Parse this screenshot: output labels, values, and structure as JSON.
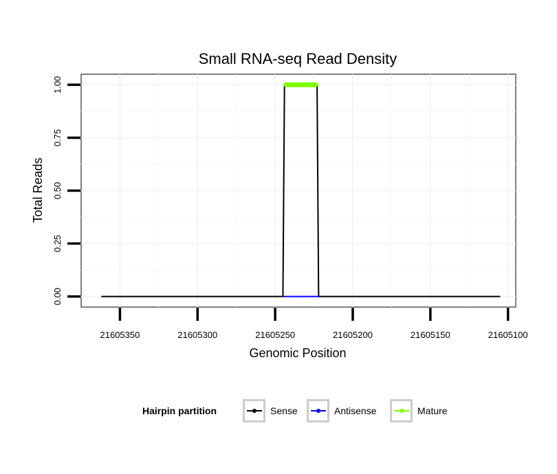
{
  "chart_data": {
    "type": "line",
    "title": "Small RNA-seq Read Density",
    "xlabel": "Genomic Position",
    "ylabel": "Total Reads",
    "x_reversed": true,
    "xlim": [
      21605375,
      21605095
    ],
    "ylim": [
      -0.05,
      1.05
    ],
    "x_ticks": [
      21605350,
      21605300,
      21605250,
      21605200,
      21605150,
      21605100
    ],
    "x_tick_labels": [
      "21605350",
      "21605300",
      "21605250",
      "21605200",
      "21605150",
      "21605100"
    ],
    "y_ticks": [
      0.0,
      0.25,
      0.5,
      0.75,
      1.0
    ],
    "y_tick_labels": [
      "0.00",
      "0.25",
      "0.50",
      "0.75",
      "1.00"
    ],
    "grid": true,
    "legend_position": "bottom",
    "legend_title": "Hairpin partition",
    "series": [
      {
        "name": "Sense",
        "color": "#000000",
        "x": [
          21605362,
          21605245,
          21605244,
          21605223,
          21605222,
          21605105
        ],
        "y": [
          0,
          0,
          1,
          1,
          0,
          0
        ]
      },
      {
        "name": "Antisense",
        "color": "#0000ff",
        "x": [
          21605245,
          21605222
        ],
        "y": [
          0,
          0
        ]
      },
      {
        "name": "Mature",
        "color": "#7fff00",
        "x": [
          21605243,
          21605224
        ],
        "y": [
          1,
          1
        ]
      }
    ]
  }
}
